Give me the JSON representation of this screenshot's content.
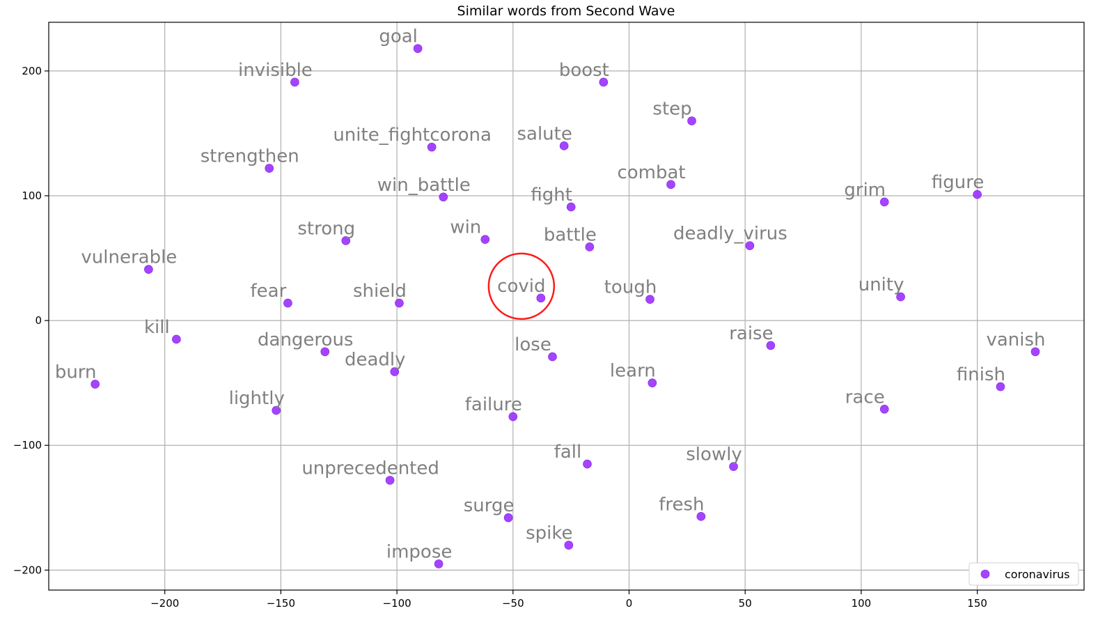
{
  "chart_data": {
    "type": "scatter",
    "title": "Similar words from Second Wave",
    "xlabel": "",
    "ylabel": "",
    "xlim": [
      -250,
      196
    ],
    "ylim": [
      -216,
      239
    ],
    "xticks": [
      -200,
      -150,
      -100,
      -50,
      0,
      50,
      100,
      150
    ],
    "yticks": [
      -200,
      -100,
      0,
      100,
      200
    ],
    "grid": true,
    "legend_position": "bottom-right",
    "point_color": "#9b30ff",
    "highlight_color": "#ff1a1a",
    "series": [
      {
        "name": "coronavirus",
        "points": [
          {
            "label": "goal",
            "x": -91,
            "y": 218
          },
          {
            "label": "invisible",
            "x": -144,
            "y": 191
          },
          {
            "label": "boost",
            "x": -11,
            "y": 191
          },
          {
            "label": "step",
            "x": 27,
            "y": 160
          },
          {
            "label": "unite_fightcorona",
            "x": -85,
            "y": 139
          },
          {
            "label": "salute",
            "x": -28,
            "y": 140
          },
          {
            "label": "strengthen",
            "x": -155,
            "y": 122
          },
          {
            "label": "combat",
            "x": 18,
            "y": 109
          },
          {
            "label": "win_battle",
            "x": -80,
            "y": 99
          },
          {
            "label": "fight",
            "x": -25,
            "y": 91
          },
          {
            "label": "grim",
            "x": 110,
            "y": 95
          },
          {
            "label": "figure",
            "x": 150,
            "y": 101
          },
          {
            "label": "strong",
            "x": -122,
            "y": 64
          },
          {
            "label": "win",
            "x": -62,
            "y": 65
          },
          {
            "label": "battle",
            "x": -17,
            "y": 59
          },
          {
            "label": "deadly_virus",
            "x": 52,
            "y": 60
          },
          {
            "label": "vulnerable",
            "x": -207,
            "y": 41
          },
          {
            "label": "covid",
            "x": -38,
            "y": 18
          },
          {
            "label": "fear",
            "x": -147,
            "y": 14
          },
          {
            "label": "shield",
            "x": -99,
            "y": 14
          },
          {
            "label": "tough",
            "x": 9,
            "y": 17
          },
          {
            "label": "unity",
            "x": 117,
            "y": 19
          },
          {
            "label": "kill",
            "x": -195,
            "y": -15
          },
          {
            "label": "dangerous",
            "x": -131,
            "y": -25
          },
          {
            "label": "deadly",
            "x": -101,
            "y": -41
          },
          {
            "label": "lose",
            "x": -33,
            "y": -29
          },
          {
            "label": "raise",
            "x": 61,
            "y": -20
          },
          {
            "label": "vanish",
            "x": 175,
            "y": -25
          },
          {
            "label": "burn",
            "x": -230,
            "y": -51
          },
          {
            "label": "learn",
            "x": 10,
            "y": -50
          },
          {
            "label": "finish",
            "x": 160,
            "y": -53
          },
          {
            "label": "lightly",
            "x": -152,
            "y": -72
          },
          {
            "label": "failure",
            "x": -50,
            "y": -77
          },
          {
            "label": "race",
            "x": 110,
            "y": -71
          },
          {
            "label": "fall",
            "x": -18,
            "y": -115
          },
          {
            "label": "slowly",
            "x": 45,
            "y": -117
          },
          {
            "label": "unprecedented",
            "x": -103,
            "y": -128
          },
          {
            "label": "surge",
            "x": -52,
            "y": -158
          },
          {
            "label": "fresh",
            "x": 31,
            "y": -157
          },
          {
            "label": "spike",
            "x": -26,
            "y": -180
          },
          {
            "label": "impose",
            "x": -82,
            "y": -195
          }
        ]
      }
    ],
    "highlighted_word": "covid"
  }
}
